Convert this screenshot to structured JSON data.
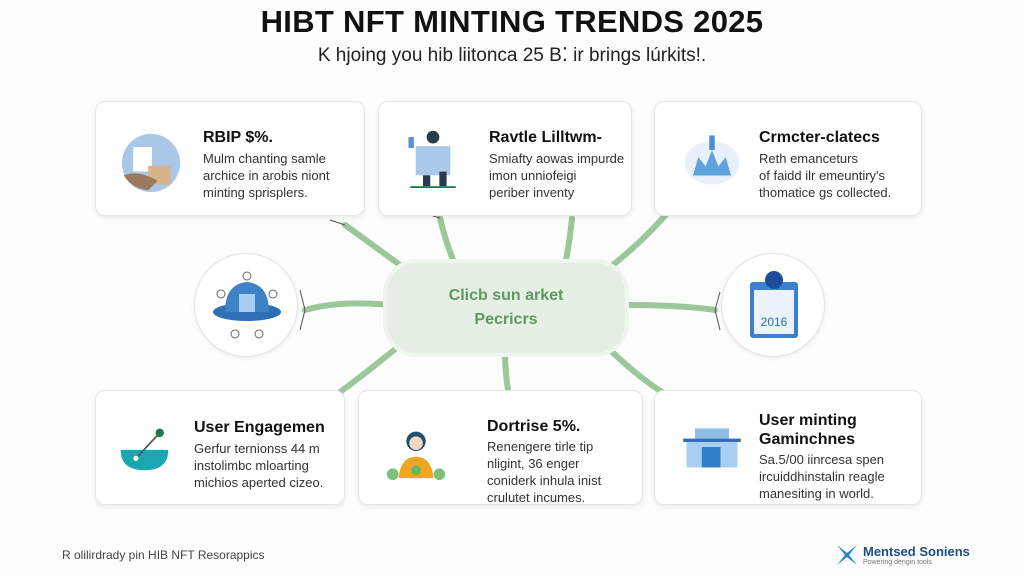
{
  "header": {
    "title": "HIBT NFT MINTING TRENDS 2025",
    "subtitle": "K hjoing you hib liitonca 25 B⁚ ir brings lúrkits!."
  },
  "hub": {
    "line1": "Clicb sun arket",
    "line2": "Pecricrs"
  },
  "cards": [
    {
      "title": "RBIP $%.",
      "body": "Mulm chanting samle\narchice in arobis niont\nminting sprisplers.",
      "icon": "document-person-icon"
    },
    {
      "title": "Ravtle Lilltwm-",
      "body": "Smiafty aowas impurde\nimon unniofeigi\nperiber inventy",
      "icon": "person-podium-icon"
    },
    {
      "title": "Crmcter-clatecs",
      "body": "Reth emanceturs\nof faidd ilr emeuntiry's\nthomatice gs collected.",
      "icon": "city-dome-icon"
    },
    {
      "title": "User Engagemen",
      "body": "Gerfur ternionss 44 m\ninstolimbc mloarting\nmichios aperted cizeo.",
      "icon": "bowl-lever-icon"
    },
    {
      "title": "Dortrise 5%.",
      "body": "Renengere tirle tip\nnligint, 36 enger\nconiderk inhula inist\ncrulutet incumes.",
      "icon": "person-plants-icon"
    },
    {
      "title": "User minting\nGaminchnes",
      "body": "Sa.5/00 iinrcesa spen\nircuiddhinstalin reagle\nmanesiting in world.",
      "icon": "bank-building-icon"
    }
  ],
  "circles": {
    "left_icon": "cloud-network-icon",
    "right_icon": "calendar-icon",
    "calendar_text": "2016"
  },
  "footer": {
    "text": "R olilirdrady pin HIB NFT Resorappics"
  },
  "logo": {
    "name": "Mentsed Soniens",
    "tagline": "Powering dengin tools"
  },
  "colors": {
    "accent_green": "#7fb77e",
    "blue": "#2f6fb5",
    "teal": "#15a9b5"
  }
}
